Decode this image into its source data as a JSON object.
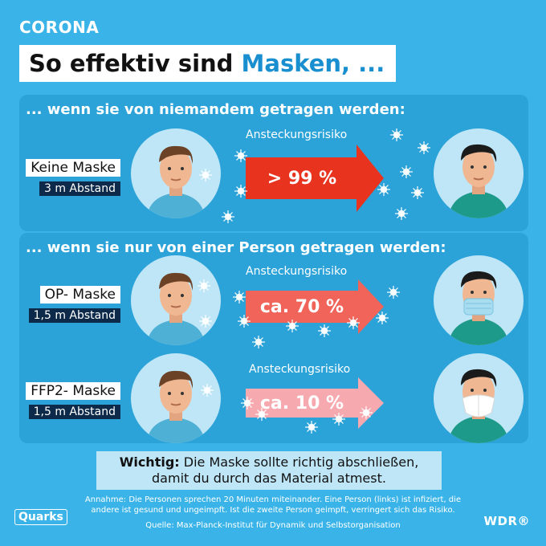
{
  "header": {
    "kicker": "CORONA",
    "title_part1": "So effektiv sind ",
    "title_accent": "Masken, ..."
  },
  "sections": [
    {
      "title": "... wenn sie von niemandem getragen werden:",
      "rows": [
        {
          "mask": "Keine Maske",
          "distance": "3 m Abstand",
          "risk_label": "Ansteckungsrisiko",
          "risk_value": "> 99 %",
          "arrow_color": "#e8331f"
        }
      ]
    },
    {
      "title": "... wenn sie nur von einer Person getragen werden:",
      "rows": [
        {
          "mask": "OP- Maske",
          "distance": "1,5 m Abstand",
          "risk_label": "Ansteckungsrisiko",
          "risk_value": "ca. 70 %",
          "arrow_color": "#f0645a"
        },
        {
          "mask": "FFP2- Maske",
          "distance": "1,5 m Abstand",
          "risk_label": "Ansteckungsrisiko",
          "risk_value": "ca. 10 %",
          "arrow_color": "#f7a9b0"
        }
      ]
    }
  ],
  "note": {
    "lead": "Wichtig:",
    "text": " Die Maske sollte richtig abschließen,",
    "text2": "damit du durch das Material atmest."
  },
  "footer": {
    "assumption": "Annahme: Die Personen sprechen 20 Minuten miteinander. Eine Person (links) ist infiziert, die andere ist gesund und ungeimpft. Ist die zweite Person geimpft, verringert sich das Risiko.",
    "source": "Quelle: Max-Planck-Institut für Dynamik und Selbstorganisation",
    "logo_left": "Quarks",
    "logo_right": "WDR®"
  },
  "colors": {
    "background": "#3ab4e8",
    "panel": "#2ba3d9",
    "accent_text": "#1a8fcf",
    "label_dark": "#0d2a4a"
  }
}
